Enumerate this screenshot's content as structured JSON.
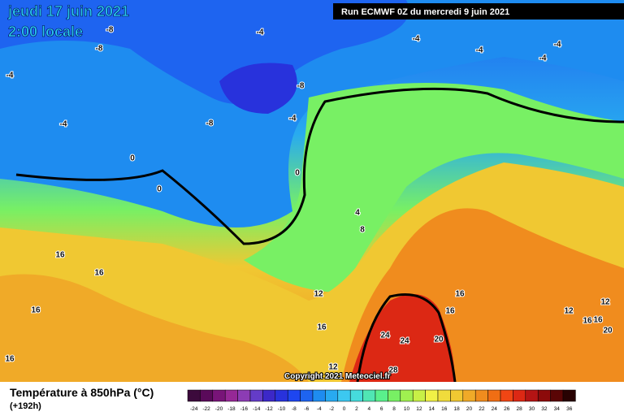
{
  "header": {
    "title": "jeudi 17 juin 2021",
    "time": "2:00 locale",
    "run": "Run ECMWF 0Z du mercredi 9 juin 2021"
  },
  "copyright": "Copyright 2021 Meteociel.fr",
  "footer": {
    "variable": "Température à 850hPa (°C)",
    "lead": "(+192h)"
  },
  "scale": {
    "values": [
      -24,
      -22,
      -20,
      -18,
      -16,
      -14,
      -12,
      -10,
      -8,
      -6,
      -4,
      -2,
      0,
      2,
      4,
      6,
      8,
      10,
      12,
      14,
      16,
      18,
      20,
      22,
      24,
      26,
      28,
      30,
      32,
      34,
      36
    ],
    "colors": [
      "#3c0a3c",
      "#5a0a5a",
      "#781478",
      "#962896",
      "#8c3cb4",
      "#643cc8",
      "#3c28c8",
      "#2832dc",
      "#1e46f0",
      "#1e64f0",
      "#1e8cf0",
      "#28aaf0",
      "#3cc8f0",
      "#46dcdc",
      "#50e6b4",
      "#5af08c",
      "#78f064",
      "#a0f050",
      "#c8f046",
      "#f0f046",
      "#f0dc3c",
      "#f0c832",
      "#f0aa28",
      "#f08c1e",
      "#f06e14",
      "#f04614",
      "#dc2814",
      "#b41414",
      "#8c0a0a",
      "#5a0505",
      "#280202"
    ]
  },
  "map_labels": [
    -8,
    -8,
    -4,
    -4,
    -4,
    -4,
    -4,
    -4,
    -8,
    -4,
    -8,
    -4,
    0,
    0,
    0,
    4,
    8,
    16,
    16,
    16,
    12,
    16,
    24,
    24,
    20,
    16,
    16,
    12,
    12,
    16,
    16,
    20,
    16,
    12,
    28
  ]
}
